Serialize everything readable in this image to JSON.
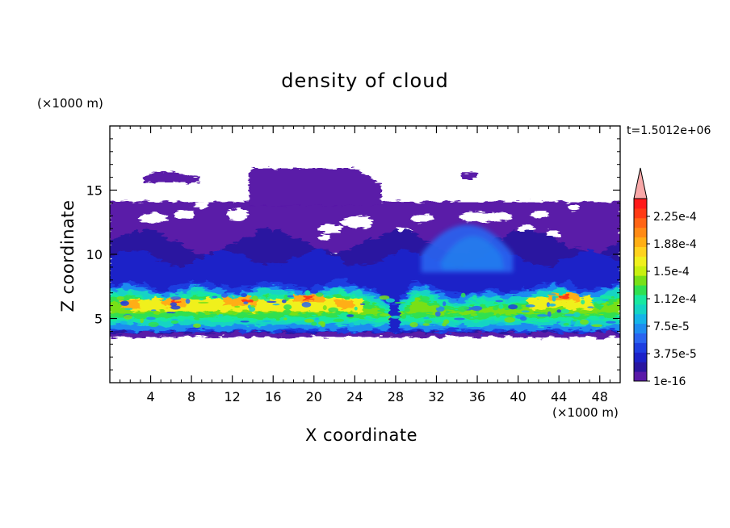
{
  "chart_data": {
    "type": "heatmap",
    "title": "density of cloud",
    "xlabel": "X coordinate",
    "ylabel": "Z coordinate",
    "x_unit": "(×1000 m)",
    "y_unit": "(×1000 m)",
    "time_label": "t=1.5012e+06",
    "xlim": [
      0,
      50
    ],
    "ylim": [
      0,
      20
    ],
    "x_ticks": [
      4,
      8,
      12,
      16,
      20,
      24,
      28,
      32,
      36,
      40,
      44,
      48
    ],
    "y_ticks": [
      5,
      10,
      15
    ],
    "colorbar": {
      "labels": [
        "1e-16",
        "3.75e-5",
        "7.5e-5",
        "1.12e-4",
        "1.5e-4",
        "1.88e-4",
        "2.25e-4"
      ],
      "extend": "max",
      "colors": [
        "#5a1aa8",
        "#2a16a0",
        "#1c22c8",
        "#1e3ee0",
        "#2a64f0",
        "#1e8cf0",
        "#15b4e8",
        "#14d4c4",
        "#18e8a0",
        "#30e050",
        "#78e018",
        "#c8f010",
        "#f0f01e",
        "#ffd21e",
        "#ffae14",
        "#ff8a14",
        "#ff6414",
        "#ff3a14",
        "#ff1a1a",
        "#f8a8a8"
      ]
    },
    "field_bands": [
      {
        "level": 0,
        "z_range": [
          3.5,
          14.2
        ]
      },
      {
        "level": 1,
        "z_range": [
          3.8,
          12.0
        ]
      },
      {
        "level": 4,
        "z_range": [
          4.0,
          7.8
        ]
      },
      {
        "level": 10,
        "z_range": [
          5.2,
          7.2
        ]
      },
      {
        "level": 13,
        "z_range": [
          6.0,
          7.0
        ]
      }
    ]
  }
}
